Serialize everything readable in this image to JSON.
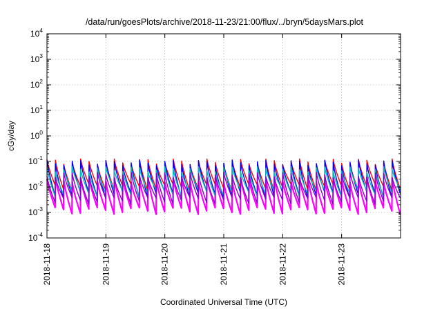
{
  "chart_data": {
    "type": "line",
    "title": "/data/run/goesPlots/archive/2018-11-23/21:00/flux/../bryn/5daysMars.plot",
    "xlabel": "Coordinated Universal Time (UTC)",
    "ylabel": "cGy/day",
    "yscale": "log",
    "ylim": [
      0.0001,
      10000
    ],
    "xlim": [
      "2018-11-18",
      "2018-11-24"
    ],
    "x_ticks": [
      "2018-11-18",
      "2018-11-19",
      "2018-11-20",
      "2018-11-21",
      "2018-11-22",
      "2018-11-23"
    ],
    "y_ticks": [
      {
        "base": "10",
        "exp": "-4",
        "value": 0.0001
      },
      {
        "base": "10",
        "exp": "-3",
        "value": 0.001
      },
      {
        "base": "10",
        "exp": "-2",
        "value": 0.01
      },
      {
        "base": "10",
        "exp": "-1",
        "value": 0.1
      },
      {
        "base": "10",
        "exp": "0",
        "value": 1
      },
      {
        "base": "10",
        "exp": "1",
        "value": 10
      },
      {
        "base": "10",
        "exp": "2",
        "value": 100
      },
      {
        "base": "10",
        "exp": "3",
        "value": 1000
      },
      {
        "base": "10",
        "exp": "4",
        "value": 10000
      }
    ],
    "grid": true,
    "cycles_per_day": 7,
    "series": [
      {
        "color": "#ff00ff",
        "peak": 0.02,
        "trough": 0.0012
      },
      {
        "color": "#ff0000",
        "peak": 0.1,
        "trough": 0.01
      },
      {
        "color": "#0000ff",
        "peak": 0.09,
        "trough": 0.005
      },
      {
        "color": "#00bbbb",
        "peak": 0.05,
        "trough": 0.006
      },
      {
        "color": "#8800cc",
        "peak": 0.03,
        "trough": 0.003
      }
    ]
  }
}
